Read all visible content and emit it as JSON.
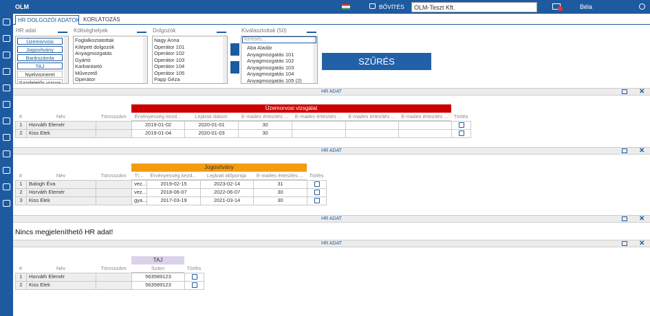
{
  "header": {
    "logo": "OLM",
    "extend": "BŐVÍTÉS",
    "company": "OLM-Teszt Kft.",
    "user": "Béla"
  },
  "tabs": [
    "HR DOLGOZÓI ADATOK",
    "KORLÁTOZÁS"
  ],
  "filters": {
    "hr": {
      "label": "HR adat",
      "items": [
        "Üzemorvosi",
        "Jogosítvány",
        "Bankszámla",
        "TAJ",
        "Nyelvismeret",
        "Szorfelelős vizsga"
      ]
    },
    "costcenters": {
      "label": "Költséghelyek",
      "items": [
        "Foglalkoztatottak",
        "Kilépett dolgozók",
        "Anyagmozgatás",
        "Gyártó",
        "Karbantartó",
        "Művezető",
        "Operátor"
      ]
    },
    "employees": {
      "label": "Dolgozók",
      "items": [
        "Nagy Anna",
        "Operátor 101",
        "Operátor 102",
        "Operátor 103",
        "Operátor 104",
        "Operátor 105",
        "Papp Géza"
      ]
    },
    "selected": {
      "label": "Kiválasztottak (50)",
      "search": "Keresés...",
      "items": [
        "Aba Aladár",
        "Anyagmozgatás 101",
        "Anyagmozgatás 102",
        "Anyagmozgatás 103",
        "Anyagmozgatás 104",
        "Anyagmozgatás 105 (2)"
      ]
    },
    "button": "SZŰRÉS"
  },
  "sections": [
    {
      "bar": "HR ADAT",
      "table": {
        "group": "Üzemorvosi vizsgálat",
        "columns": [
          "#",
          "Név",
          "Törzsszám",
          "Érvényesség kezd...",
          "Lejárati dátum",
          "E-mailes értesítés ...",
          "E-mailes értesítés ...",
          "E-mailes értesítés ...",
          "E-mailes értesítés ...",
          "Törlés"
        ],
        "rows": [
          {
            "index": "1",
            "name": "Horváth Elemér",
            "values": [
              "2019-01-02",
              "2020-01-01",
              "30"
            ]
          },
          {
            "index": "2",
            "name": "Kiss Elek",
            "values": [
              "2019-01-04",
              "2020-01-03",
              "30"
            ]
          }
        ]
      }
    },
    {
      "bar": "HR ADAT",
      "table": {
        "group": "Jogosítvány",
        "columns": [
          "#",
          "Név",
          "Törzsszám",
          "Tí...",
          "Érvényesség kezd...",
          "Lejárati időpontja",
          "E-mailes értesítés ...",
          "Törlés"
        ],
        "rows": [
          {
            "index": "1",
            "name": "Balogh Éva",
            "values": [
              "vez...",
              "2019-02-15",
              "2023-02-14",
              "31"
            ]
          },
          {
            "index": "2",
            "name": "Horváth Elemér",
            "values": [
              "vez...",
              "2018-06-07",
              "2022-06-07",
              "30"
            ]
          },
          {
            "index": "3",
            "name": "Kiss Elek",
            "values": [
              "gya...",
              "2017-03-19",
              "2021-03-14",
              "30"
            ]
          }
        ]
      }
    },
    {
      "bar": "HR ADAT",
      "message": "Nincs megjeleníthető HR adat!"
    },
    {
      "bar": "HR ADAT",
      "table": {
        "group": "TAJ",
        "columns": [
          "#",
          "Név",
          "Törzsszám",
          "Szám",
          "Törlés"
        ],
        "rows": [
          {
            "index": "1",
            "name": "Horváth Elemér",
            "values": [
              "563589123"
            ]
          },
          {
            "index": "2",
            "name": "Kiss Elek",
            "values": [
              "563589123"
            ]
          }
        ]
      }
    }
  ]
}
